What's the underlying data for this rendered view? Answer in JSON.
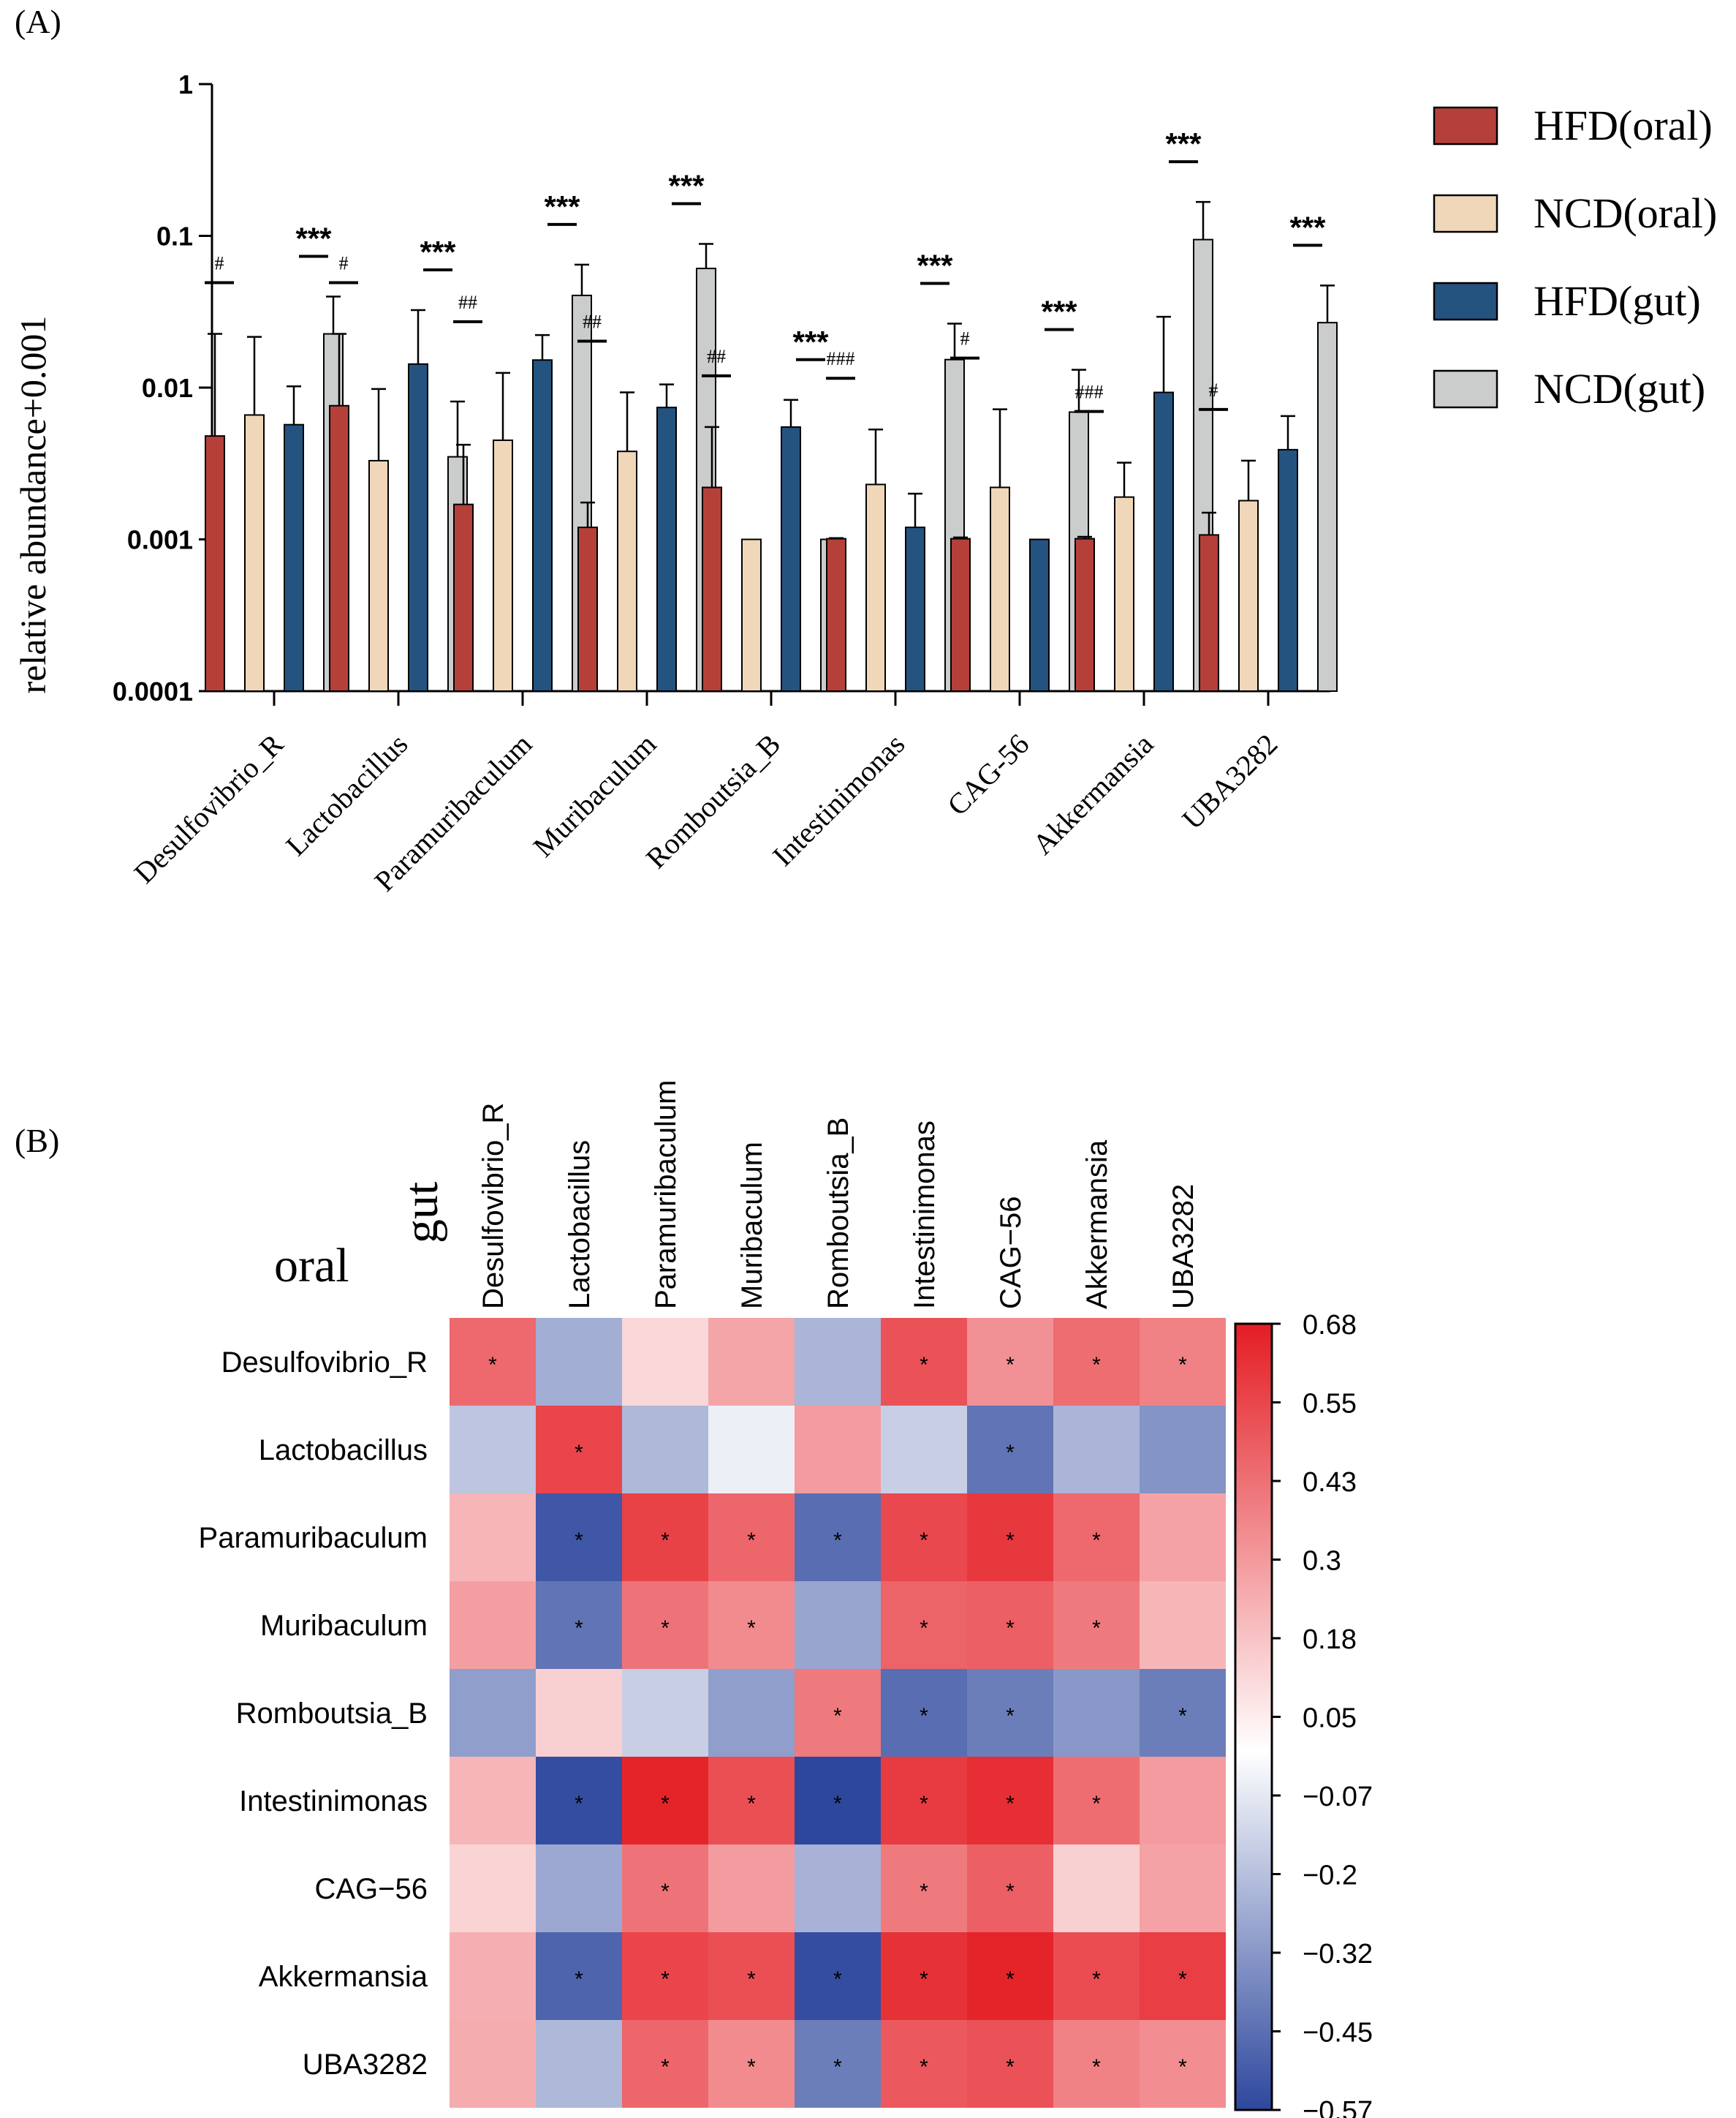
{
  "chart_data": [
    {
      "type": "bar",
      "panel_label": "(A)",
      "scale": "log10",
      "ylabel": "relative abundance+0.001",
      "ylim": [
        0.0001,
        1
      ],
      "yticks": [
        "1",
        "0.1",
        "0.01",
        "0.001",
        "0.0001"
      ],
      "categories": [
        "Desulfovibrio_R",
        "Lactobacillus",
        "Paramuribaculum",
        "Muribaculum",
        "Romboutsia_B",
        "Intestinimonas",
        "CAG-56",
        "Akkermansia",
        "UBA3282"
      ],
      "series": [
        {
          "name": "HFD(oral)",
          "color": "#b5403a",
          "values": [
            0.0048,
            0.0076,
            0.0017,
            0.0012,
            0.0022,
            0.00101,
            0.00101,
            0.00101,
            0.00107
          ],
          "errors": [
            0.0226,
            0.0226,
            0.0042,
            0.00175,
            0.0055,
            0.00102,
            0.00103,
            0.00104,
            0.0015
          ]
        },
        {
          "name": "NCD(oral)",
          "color": "#f0d7b9",
          "values": [
            0.0066,
            0.0033,
            0.0045,
            0.0038,
            0.001,
            0.0023,
            0.0022,
            0.0019,
            0.0018
          ],
          "errors": [
            0.0216,
            0.0098,
            0.0125,
            0.0093,
            0.001,
            0.0053,
            0.0072,
            0.0032,
            0.0033
          ]
        },
        {
          "name": "HFD(gut)",
          "color": "#245380",
          "values": [
            0.0057,
            0.0143,
            0.0152,
            0.0074,
            0.0055,
            0.0012,
            0.001,
            0.0093,
            0.0039
          ],
          "errors": [
            0.0102,
            0.0324,
            0.0222,
            0.0105,
            0.0083,
            0.002,
            0.001,
            0.0293,
            0.0065
          ]
        },
        {
          "name": "NCD(gut)",
          "color": "#cbcccc",
          "values": [
            0.0226,
            0.0035,
            0.0405,
            0.061,
            0.001,
            0.0153,
            0.0069,
            0.0945,
            0.0268
          ],
          "errors": [
            0.0398,
            0.0081,
            0.0646,
            0.0885,
            0.001,
            0.0264,
            0.0131,
            0.1673,
            0.0471
          ]
        }
      ],
      "annotations": [
        {
          "category": "Desulfovibrio_R",
          "oral": "#",
          "gut": "***"
        },
        {
          "category": "Lactobacillus",
          "oral": "#",
          "gut": "***"
        },
        {
          "category": "Paramuribaculum",
          "oral": "##",
          "gut": "***"
        },
        {
          "category": "Muribaculum",
          "oral": "##",
          "gut": "***"
        },
        {
          "category": "Romboutsia_B",
          "oral": "##",
          "gut": "***"
        },
        {
          "category": "Intestinimonas",
          "oral": "###",
          "gut": "***"
        },
        {
          "category": "CAG-56",
          "oral": "#",
          "gut": "***"
        },
        {
          "category": "Akkermansia",
          "oral": "###",
          "gut": "***"
        },
        {
          "category": "UBA3282",
          "oral": "#",
          "gut": "***"
        }
      ]
    },
    {
      "type": "heatmap",
      "panel_label": "(B)",
      "row_axis_title": "oral",
      "col_axis_title": "gut",
      "rows": [
        "Desulfovibrio_R",
        "Lactobacillus",
        "Paramuribaculum",
        "Muribaculum",
        "Romboutsia_B",
        "Intestinimonas",
        "CAG−56",
        "Akkermansia",
        "UBA3282"
      ],
      "cols": [
        "Desulfovibrio_R",
        "Lactobacillus",
        "Paramuribaculum",
        "Muribaculum",
        "Romboutsia_B",
        "Intestinimonas",
        "CAG−56",
        "Akkermansia",
        "UBA3282"
      ],
      "values": [
        [
          0.45,
          -0.25,
          0.12,
          0.27,
          -0.23,
          0.52,
          0.33,
          0.44,
          0.38
        ],
        [
          -0.18,
          0.56,
          -0.22,
          -0.05,
          0.3,
          -0.15,
          -0.43,
          -0.23,
          -0.33
        ],
        [
          0.22,
          -0.52,
          0.57,
          0.46,
          -0.45,
          0.55,
          0.6,
          0.45,
          0.28
        ],
        [
          0.29,
          -0.43,
          0.42,
          0.35,
          -0.28,
          0.47,
          0.48,
          0.4,
          0.22
        ],
        [
          -0.3,
          0.14,
          -0.15,
          -0.3,
          0.4,
          -0.45,
          -0.4,
          -0.32,
          -0.4
        ],
        [
          0.22,
          -0.55,
          0.66,
          0.53,
          -0.57,
          0.59,
          0.63,
          0.44,
          0.3
        ],
        [
          0.13,
          -0.27,
          0.42,
          0.3,
          -0.24,
          0.4,
          0.48,
          0.14,
          0.28
        ],
        [
          0.24,
          -0.48,
          0.56,
          0.53,
          -0.55,
          0.62,
          0.66,
          0.54,
          0.58
        ],
        [
          0.25,
          -0.22,
          0.46,
          0.35,
          -0.4,
          0.5,
          0.52,
          0.38,
          0.34
        ]
      ],
      "significant": [
        [
          1,
          0,
          0,
          0,
          0,
          1,
          1,
          1,
          1
        ],
        [
          0,
          1,
          0,
          0,
          0,
          0,
          1,
          0,
          0
        ],
        [
          0,
          1,
          1,
          1,
          1,
          1,
          1,
          1,
          0
        ],
        [
          0,
          1,
          1,
          1,
          0,
          1,
          1,
          1,
          0
        ],
        [
          0,
          0,
          0,
          0,
          1,
          1,
          1,
          0,
          1
        ],
        [
          0,
          1,
          1,
          1,
          1,
          1,
          1,
          1,
          0
        ],
        [
          0,
          0,
          1,
          0,
          0,
          1,
          1,
          0,
          0
        ],
        [
          0,
          1,
          1,
          1,
          1,
          1,
          1,
          1,
          1
        ],
        [
          0,
          0,
          1,
          1,
          1,
          1,
          1,
          1,
          1
        ]
      ],
      "significance_mark": "*",
      "vmin": -0.57,
      "vmax": 0.68,
      "colorbar_ticks": [
        "0.68",
        "0.55",
        "0.43",
        "0.3",
        "0.18",
        "0.05",
        "−0.07",
        "−0.2",
        "−0.32",
        "−0.45",
        "−0.57"
      ],
      "colormap": {
        "low": "#2d479d",
        "mid": "#ffffff",
        "high": "#e41d24"
      }
    }
  ]
}
